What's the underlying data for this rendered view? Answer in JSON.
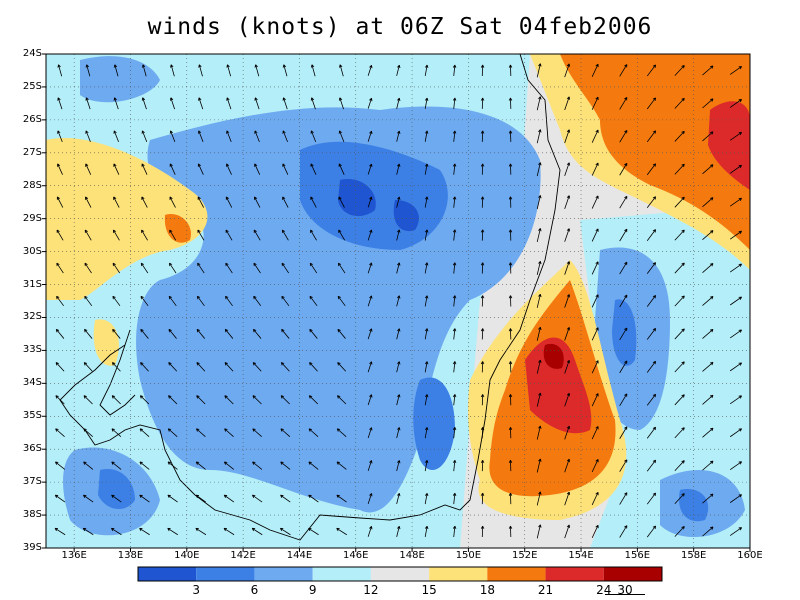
{
  "title": "winds (knots) at 06Z Sat 04feb2006",
  "map": {
    "lat_labels": [
      "24S",
      "25S",
      "26S",
      "27S",
      "28S",
      "29S",
      "30S",
      "31S",
      "32S",
      "33S",
      "34S",
      "35S",
      "36S",
      "37S",
      "38S",
      "39S"
    ],
    "lon_labels": [
      "136E",
      "138E",
      "140E",
      "142E",
      "144E",
      "146E",
      "148E",
      "150E",
      "152E",
      "154E",
      "156E",
      "158E",
      "160E"
    ],
    "lat_range": [
      -39,
      -24
    ],
    "lon_range": [
      135,
      160
    ],
    "grid": "dotted",
    "contour_levels": [
      3,
      6,
      9,
      12,
      15,
      18,
      21,
      24
    ],
    "colorbar": {
      "labels": [
        "3",
        "6",
        "9",
        "12",
        "15",
        "18",
        "21",
        "24"
      ],
      "colors": [
        "#1f55d0",
        "#3c80e6",
        "#6eaaf0",
        "#b4eef8",
        "#e6e6e6",
        "#fde27a",
        "#f47a10",
        "#dc2a2a",
        "#a80000"
      ]
    },
    "vector_reference": "30"
  }
}
